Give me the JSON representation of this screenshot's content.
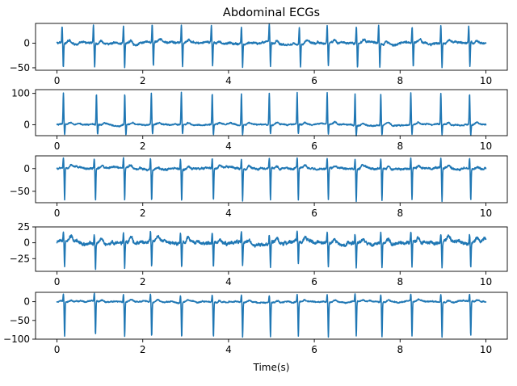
{
  "chart_data": {
    "type": "line",
    "title": "Abdominal ECGs",
    "xlabel": "Time(s)",
    "xlim": [
      -0.5,
      10.5
    ],
    "xticks": [
      0,
      2,
      4,
      6,
      8,
      10
    ],
    "line_color": "#1f77b4",
    "grid": false,
    "panels": [
      {
        "ylim": [
          -55,
          40
        ],
        "yticks": [
          -50,
          0
        ],
        "peak_times": [
          0.12,
          0.85,
          1.55,
          2.22,
          2.9,
          3.6,
          4.3,
          4.95,
          5.65,
          6.3,
          6.98,
          7.5,
          8.28,
          8.95,
          9.6
        ],
        "peak_up": 35,
        "peak_down": -48,
        "baseline": 0,
        "noise": 5
      },
      {
        "ylim": [
          -35,
          112
        ],
        "yticks": [
          0,
          100
        ],
        "peak_times": [
          0.15,
          0.92,
          1.58,
          2.2,
          2.9,
          3.62,
          4.3,
          4.95,
          5.6,
          6.3,
          6.95,
          7.55,
          8.25,
          8.95,
          9.62
        ],
        "peak_up": 100,
        "peak_down": -32,
        "baseline": 0,
        "noise": 5
      },
      {
        "ylim": [
          -75,
          28
        ],
        "yticks": [
          -50,
          0
        ],
        "peak_times": [
          0.15,
          0.87,
          1.55,
          2.18,
          2.88,
          3.62,
          4.3,
          4.95,
          5.6,
          6.3,
          6.95,
          7.55,
          8.25,
          8.95,
          9.62
        ],
        "peak_up": 22,
        "peak_down": -70,
        "baseline": 0,
        "noise": 5
      },
      {
        "ylim": [
          -45,
          25
        ],
        "yticks": [
          -25,
          0,
          25
        ],
        "peak_times": [
          0.15,
          0.87,
          1.55,
          2.18,
          2.88,
          3.62,
          4.3,
          4.95,
          5.6,
          6.3,
          6.95,
          7.55,
          8.25,
          8.95,
          9.62
        ],
        "peak_up": 15,
        "peak_down": -38,
        "baseline": 0,
        "noise": 6
      },
      {
        "ylim": [
          -100,
          25
        ],
        "yticks": [
          -100,
          -50,
          0
        ],
        "peak_times": [
          0.15,
          0.87,
          1.55,
          2.18,
          2.88,
          3.62,
          4.3,
          4.95,
          5.6,
          6.3,
          6.95,
          7.55,
          8.25,
          8.95,
          9.62
        ],
        "peak_up": 20,
        "peak_down": -92,
        "baseline": 0,
        "noise": 4
      }
    ]
  }
}
